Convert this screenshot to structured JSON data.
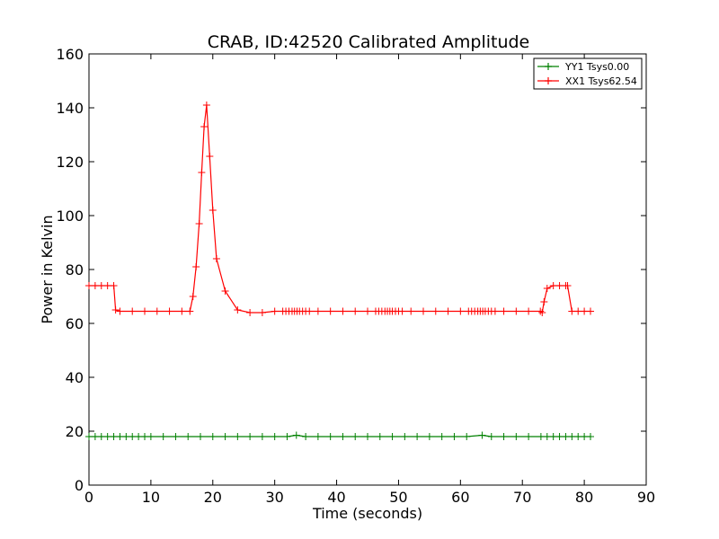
{
  "chart_data": {
    "type": "line",
    "title": "CRAB, ID:42520 Calibrated Amplitude",
    "xlabel": "Time (seconds)",
    "ylabel": "Power in Kelvin",
    "xlim": [
      0,
      90
    ],
    "ylim": [
      0,
      160
    ],
    "xticks": [
      "0",
      "10",
      "20",
      "30",
      "40",
      "50",
      "60",
      "70",
      "80",
      "90"
    ],
    "yticks": [
      "0",
      "20",
      "40",
      "60",
      "80",
      "100",
      "120",
      "140",
      "160"
    ],
    "grid": false,
    "legend_position": "top-right",
    "marker": "+",
    "series": [
      {
        "name": "YY1 Tsys0.00",
        "color": "#008000",
        "x": [
          0,
          1,
          2,
          3,
          4,
          5,
          6,
          7,
          8,
          9,
          10,
          12,
          14,
          16,
          18,
          20,
          22,
          24,
          26,
          28,
          30,
          32,
          33.5,
          35,
          37,
          39,
          41,
          43,
          45,
          47,
          49,
          51,
          53,
          55,
          57,
          59,
          61,
          63.5,
          65,
          67,
          69,
          71,
          73,
          74,
          75,
          76,
          77,
          78,
          79,
          80,
          81
        ],
        "y": [
          18,
          18,
          18,
          18,
          18,
          18,
          18,
          18,
          18,
          18,
          18,
          18,
          18,
          18,
          18,
          18,
          18,
          18,
          18,
          18,
          18,
          18,
          18.5,
          18,
          18,
          18,
          18,
          18,
          18,
          18,
          18,
          18,
          18,
          18,
          18,
          18,
          18,
          18.5,
          18,
          18,
          18,
          18,
          18,
          18,
          18,
          18,
          18,
          18,
          18,
          18,
          18
        ]
      },
      {
        "name": "XX1 Tsys62.54",
        "color": "#ff0000",
        "x": [
          0,
          1,
          2,
          3,
          4,
          4.3,
          5,
          7,
          9,
          11,
          13,
          15,
          16.3,
          16.8,
          17.3,
          17.8,
          18.2,
          18.6,
          19,
          19.5,
          20,
          20.6,
          22,
          24,
          26,
          28,
          30,
          31.3,
          31.8,
          32.3,
          32.8,
          33.2,
          33.6,
          34,
          34.5,
          35,
          35.6,
          37,
          39,
          41,
          43,
          45,
          46.3,
          46.8,
          47.3,
          47.8,
          48.2,
          48.6,
          49,
          49.5,
          50,
          50.6,
          52,
          54,
          56,
          58,
          60,
          61.3,
          61.8,
          62.3,
          62.8,
          63.2,
          63.6,
          64,
          64.5,
          65,
          65.6,
          67,
          69,
          71,
          72.9,
          73.2,
          73.5,
          74,
          75,
          76,
          77,
          77.3,
          78,
          79,
          80,
          81
        ],
        "y": [
          74,
          74,
          74,
          74,
          74,
          65,
          64.5,
          64.5,
          64.5,
          64.5,
          64.5,
          64.5,
          64.5,
          70,
          81,
          97,
          116,
          133,
          141,
          122,
          102,
          84,
          72,
          65,
          64,
          64,
          64.5,
          64.5,
          64.5,
          64.5,
          64.5,
          64.5,
          64.5,
          64.5,
          64.5,
          64.5,
          64.5,
          64.5,
          64.5,
          64.5,
          64.5,
          64.5,
          64.5,
          64.5,
          64.5,
          64.5,
          64.5,
          64.5,
          64.5,
          64.5,
          64.5,
          64.5,
          64.5,
          64.5,
          64.5,
          64.5,
          64.5,
          64.5,
          64.5,
          64.5,
          64.5,
          64.5,
          64.5,
          64.5,
          64.5,
          64.5,
          64.5,
          64.5,
          64.5,
          64.5,
          64.5,
          64,
          68,
          73,
          74,
          74,
          74,
          74,
          64.5,
          64.5,
          64.5,
          64.5
        ]
      }
    ]
  }
}
